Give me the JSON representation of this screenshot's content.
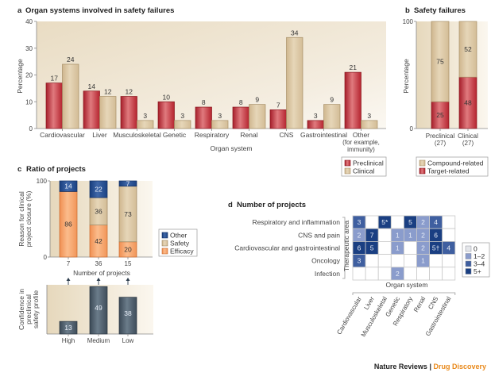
{
  "footer": {
    "journal": "Nature Reviews",
    "separator": " | ",
    "section": "Drug Discovery"
  },
  "colors": {
    "preclinical": "#c0303a",
    "clinical": "#d6c09c",
    "target": "#c0303a",
    "compound": "#d6c09c",
    "other": "#1f4a8a",
    "safety": "#cdb995",
    "efficacy": "#f5a066",
    "confidence": "#4a5a68",
    "heat_0": "#ffffff",
    "heat_1_2": "#8a9ccc",
    "heat_3_4": "#3f5fa0",
    "heat_5p": "#1a3f82",
    "accent": "#e98a1c"
  },
  "chart_data": [
    {
      "id": "a",
      "type": "bar",
      "panel_letter": "a",
      "title": "Organ systems involved in safety failures",
      "xlabel": "Organ system",
      "ylabel": "Percentage",
      "ylim": [
        0,
        40
      ],
      "yticks": [
        0,
        10,
        20,
        30,
        40
      ],
      "categories": [
        "Cardiovascular",
        "Liver",
        "Musculoskeletal",
        "Genetic",
        "Respiratory",
        "Renal",
        "CNS",
        "Gastrointestinal",
        "Other\n(for example,\nimmunity)"
      ],
      "category_lines": [
        [
          "Cardiovascular"
        ],
        [
          "Liver"
        ],
        [
          "Musculoskeletal"
        ],
        [
          "Genetic"
        ],
        [
          "Respiratory"
        ],
        [
          "Renal"
        ],
        [
          "CNS"
        ],
        [
          "Gastrointestinal"
        ],
        [
          "Other",
          "(for example,",
          "immunity)"
        ]
      ],
      "series": [
        {
          "name": "Preclinical",
          "values": [
            17,
            14,
            12,
            10,
            8,
            8,
            7,
            3,
            21
          ]
        },
        {
          "name": "Clinical",
          "values": [
            24,
            12,
            3,
            3,
            3,
            9,
            34,
            9,
            3
          ]
        }
      ],
      "legend": [
        "Preclinical",
        "Clinical"
      ],
      "legend_position": "bottom-right"
    },
    {
      "id": "b",
      "type": "bar",
      "stacked": true,
      "panel_letter": "b",
      "title": "Safety failures",
      "ylabel": "Percentage",
      "ylim": [
        0,
        100
      ],
      "yticks": [
        0,
        100
      ],
      "categories": [
        "Preclinical",
        "Clinical"
      ],
      "category_sub": [
        "(27)",
        "(27)"
      ],
      "series": [
        {
          "name": "Target-related",
          "values": [
            25,
            48
          ]
        },
        {
          "name": "Compound-related",
          "values": [
            75,
            52
          ]
        }
      ],
      "legend": [
        "Compound-related",
        "Target-related"
      ],
      "legend_position": "bottom"
    },
    {
      "id": "c",
      "type": "bar",
      "stacked": true,
      "panel_letter": "c",
      "title": "Ratio of projects",
      "ylabel": "Reason for clinical project closure (%)",
      "ylabel_lines": [
        "Reason for clinical",
        "project closure (%)"
      ],
      "xlabel": "Number of projects",
      "ylim": [
        0,
        100
      ],
      "yticks": [
        0,
        100
      ],
      "categories": [
        "7",
        "36",
        "15"
      ],
      "series": [
        {
          "name": "Efficacy",
          "values": [
            86,
            42,
            20
          ]
        },
        {
          "name": "Safety",
          "values": [
            0,
            36,
            73
          ]
        },
        {
          "name": "Other",
          "values": [
            14,
            22,
            7
          ]
        }
      ],
      "legend": [
        "Other",
        "Safety",
        "Efficacy"
      ],
      "legend_position": "right"
    },
    {
      "id": "c2",
      "type": "bar",
      "ylabel": "Confidence in preclinical safety profile",
      "ylabel_lines": [
        "Confidence in",
        "preclinical",
        "safety profile"
      ],
      "categories": [
        "High",
        "Medium",
        "Low"
      ],
      "values": [
        13,
        49,
        38
      ],
      "ylim": [
        0,
        50
      ]
    },
    {
      "id": "d",
      "type": "heatmap",
      "panel_letter": "d",
      "title": "Number of projects",
      "ylabel": "Therapeutic area",
      "xlabel": "Organ system",
      "rows": [
        "Respiratory and inflammation",
        "CNS and pain",
        "Cardiovascular and gastrointestinal",
        "Oncology",
        "Infection"
      ],
      "columns": [
        "Cardiovascular",
        "Liver",
        "Musculoskeletal",
        "Genetic",
        "Respiratory",
        "Renal",
        "CNS",
        "Gastrointestinal"
      ],
      "values": [
        [
          "3",
          "",
          "5*",
          "",
          "5",
          "2",
          "4",
          ""
        ],
        [
          "2",
          "7",
          "",
          "1",
          "1",
          "2",
          "6",
          ""
        ],
        [
          "6",
          "5",
          "",
          "1",
          "",
          "2",
          "5†",
          "4"
        ],
        [
          "3",
          "",
          "",
          "",
          "",
          "1",
          "",
          ""
        ],
        [
          "",
          "",
          "",
          "2",
          "",
          "",
          "",
          ""
        ]
      ],
      "legend": [
        "0",
        "1–2",
        "3–4",
        "5+"
      ]
    }
  ]
}
